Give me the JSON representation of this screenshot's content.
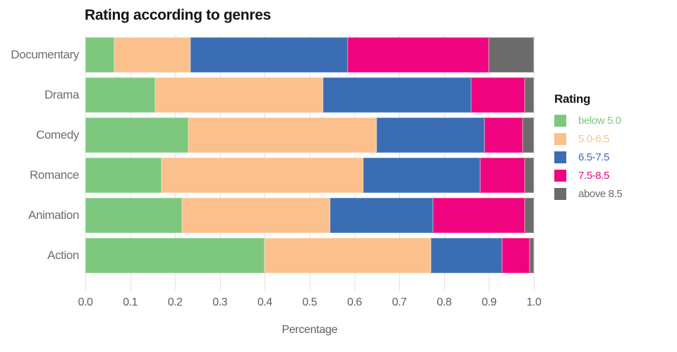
{
  "title": "Rating according to genres",
  "x_axis": {
    "label": "Percentage",
    "ticks": [
      "0.0",
      "0.1",
      "0.2",
      "0.3",
      "0.4",
      "0.5",
      "0.6",
      "0.7",
      "0.8",
      "0.9",
      "1.0"
    ]
  },
  "legend": {
    "title": "Rating",
    "items": [
      {
        "label": "below 5.0",
        "color": "#7dc87e"
      },
      {
        "label": "5.0-6.5",
        "color": "#fcc08c"
      },
      {
        "label": "6.5-7.5",
        "color": "#3a6db3"
      },
      {
        "label": "7.5-8.5",
        "color": "#f0037f"
      },
      {
        "label": "above 8.5",
        "color": "#6b6b6b"
      }
    ]
  },
  "chart_data": {
    "type": "bar",
    "orientation": "horizontal",
    "stacked": true,
    "normalized": true,
    "title": "Rating according to genres",
    "xlabel": "Percentage",
    "ylabel": "",
    "xlim": [
      0.0,
      1.0
    ],
    "grid": true,
    "gridline_color": "#f5dbdb",
    "legend_title": "Rating",
    "legend_position": "right",
    "categories": [
      "Documentary",
      "Drama",
      "Comedy",
      "Romance",
      "Animation",
      "Action"
    ],
    "series": [
      {
        "name": "below 5.0",
        "color": "#7dc87e",
        "values": [
          0.065,
          0.155,
          0.23,
          0.17,
          0.215,
          0.4
        ]
      },
      {
        "name": "5.0-6.5",
        "color": "#fcc08c",
        "values": [
          0.17,
          0.375,
          0.42,
          0.45,
          0.33,
          0.37
        ]
      },
      {
        "name": "6.5-7.5",
        "color": "#3a6db3",
        "values": [
          0.35,
          0.33,
          0.24,
          0.26,
          0.23,
          0.16
        ]
      },
      {
        "name": "7.5-8.5",
        "color": "#f0037f",
        "values": [
          0.315,
          0.12,
          0.085,
          0.1,
          0.205,
          0.06
        ]
      },
      {
        "name": "above 8.5",
        "color": "#6b6b6b",
        "values": [
          0.1,
          0.02,
          0.025,
          0.02,
          0.02,
          0.01
        ]
      }
    ]
  }
}
